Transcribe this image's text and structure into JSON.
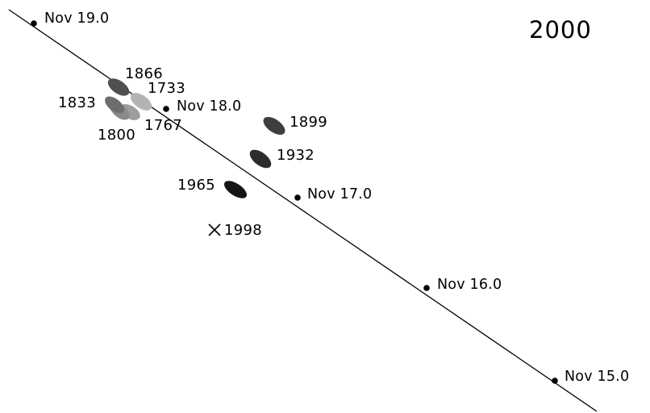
{
  "figure": {
    "year_title": "2000",
    "orbit_line": {
      "color": "#000000"
    },
    "date_markers": [
      {
        "label": "Nov 19.0"
      },
      {
        "label": "Nov 18.0"
      },
      {
        "label": "Nov 17.0"
      },
      {
        "label": "Nov 16.0"
      },
      {
        "label": "Nov 15.0"
      }
    ],
    "dust_trails": [
      {
        "label": "1866",
        "color": "#505050"
      },
      {
        "label": "1733",
        "color": "#b3b3b3"
      },
      {
        "label": "1833",
        "color": "#6e6e6e"
      },
      {
        "label": "1800",
        "color": "#8a8a8a"
      },
      {
        "label": "1767",
        "color": "#9d9d9d"
      },
      {
        "label": "1899",
        "color": "#3e3e3e"
      },
      {
        "label": "1932",
        "color": "#2c2c2c"
      },
      {
        "label": "1965",
        "color": "#141414"
      }
    ],
    "marker_1998": {
      "label": "1998",
      "symbol": "cross"
    }
  }
}
